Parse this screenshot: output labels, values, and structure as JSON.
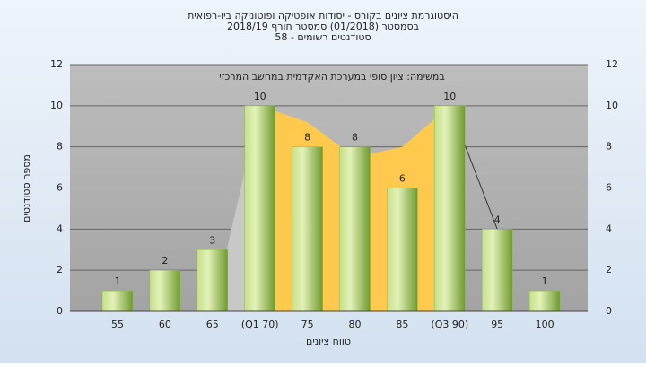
{
  "chart_data": {
    "type": "bar",
    "title_lines": [
      "היסטוגרמת ציונים בקורס - יסודות אופטיקה ופוטוניקה ביו-רפואית",
      "בסמסטר  (01/2018)  סמסטר חורף 2018/19",
      "סטודנטים רשומים - 58"
    ],
    "annotation": "במשימה: ציון סופי במערכת האקדמית במחשב המרכזי",
    "x_label": "טווח ציונים",
    "y_label": "מספר סטודנטים",
    "categories": [
      "55",
      "60",
      "65",
      "(Q1 70)",
      "75",
      "80",
      "85",
      "(Q3 90)",
      "95",
      "100"
    ],
    "values": [
      1,
      2,
      3,
      10,
      8,
      8,
      6,
      10,
      4,
      1
    ],
    "color": "#8db84a",
    "overlays": [
      {
        "type": "area",
        "color": "#c8c8c8",
        "values": [
          null,
          null,
          0,
          10,
          null,
          null,
          null,
          null,
          null,
          null
        ]
      },
      {
        "type": "area",
        "color": "#ffc94d",
        "values": [
          null,
          null,
          null,
          10,
          9.2,
          7.5,
          8,
          10,
          null,
          null
        ]
      },
      {
        "type": "line",
        "color": "#333333",
        "values": [
          null,
          null,
          null,
          null,
          null,
          null,
          null,
          10,
          4,
          null
        ]
      }
    ],
    "ylim": [
      0,
      12
    ],
    "yticks": [
      0,
      2,
      4,
      6,
      8,
      10,
      12
    ],
    "grid": true
  }
}
